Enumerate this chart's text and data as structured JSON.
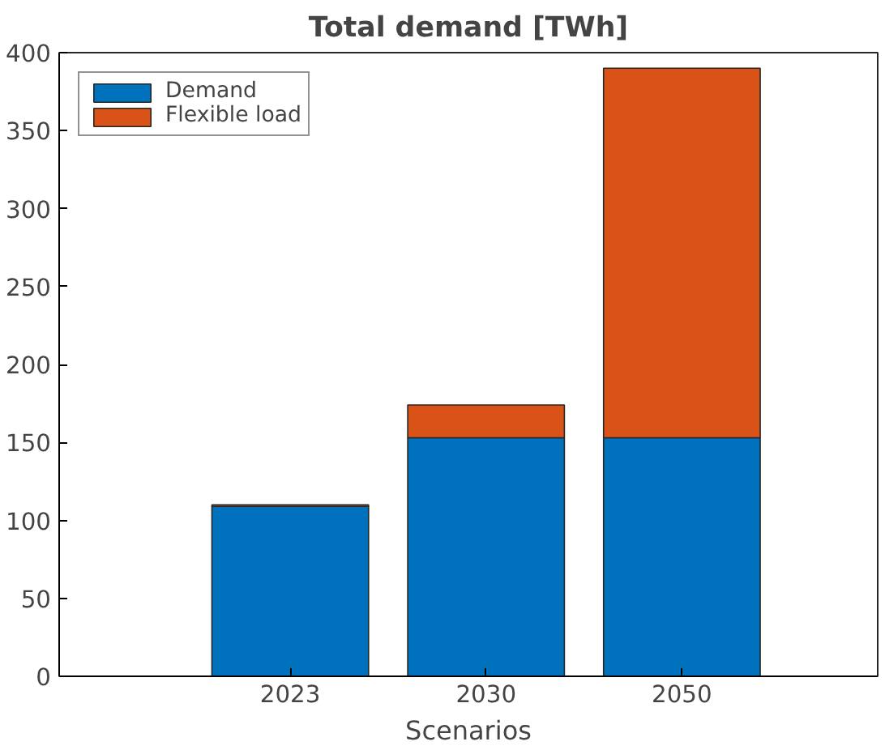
{
  "chart_data": {
    "type": "bar",
    "title": "Total demand [TWh]",
    "xlabel": "Scenarios",
    "categories": [
      "2023",
      "2030",
      "2050"
    ],
    "stacked": true,
    "series": [
      {
        "name": "Demand",
        "color": "#0072bd",
        "values": [
          109,
          153,
          153
        ]
      },
      {
        "name": "Flexible load",
        "color": "#d95319",
        "values": [
          1,
          21,
          237
        ]
      }
    ],
    "ylim": [
      0,
      400
    ],
    "yticks": [
      0,
      50,
      100,
      150,
      200,
      250,
      300,
      350,
      400
    ],
    "grid": false,
    "legend": "top left"
  }
}
